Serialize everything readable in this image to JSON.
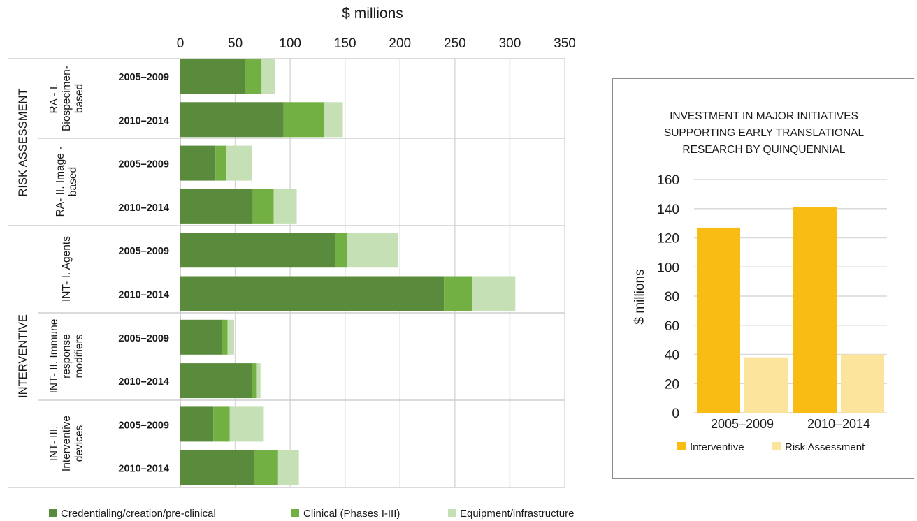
{
  "chart_data": [
    {
      "type": "bar",
      "orientation": "horizontal",
      "stacked": true,
      "xlabel": "$ millions",
      "xlim": [
        0,
        350
      ],
      "xticks": [
        0,
        50,
        100,
        150,
        200,
        250,
        300,
        350
      ],
      "grid": true,
      "legend_position": "bottom",
      "groups": [
        {
          "label": "RISK ASSESSMENT",
          "subgroups": [
            {
              "label": "RA - I. Biospecimen-based",
              "lines": [
                "RA - I.",
                "Biospecimen-",
                "based"
              ],
              "categories": [
                "2005–2009",
                "2010–2014"
              ]
            },
            {
              "label": "RA- II. Image -based",
              "lines": [
                "RA- II. Image -",
                "based"
              ],
              "categories": [
                "2005–2009",
                "2010–2014"
              ]
            }
          ]
        },
        {
          "label": "INTERVENTIVE",
          "subgroups": [
            {
              "label": "INT- I. Agents",
              "lines": [
                "INT- I. Agents"
              ],
              "categories": [
                "2005–2009",
                "2010–2014"
              ]
            },
            {
              "label": "INT- II. Immune response modifiers",
              "lines": [
                "INT- II. Immune",
                "response",
                "modifiers"
              ],
              "categories": [
                "2005–2009",
                "2010–2014"
              ]
            },
            {
              "label": "INT- III. Interventive devices",
              "lines": [
                "INT- III.",
                "Interventive",
                "devices"
              ],
              "categories": [
                "2005–2009",
                "2010–2014"
              ]
            }
          ]
        }
      ],
      "series": [
        {
          "name": "Credentialing/creation/pre-clinical",
          "color": "#5a8a3c",
          "values": [
            59,
            94,
            32,
            66,
            141,
            240,
            38,
            65,
            30,
            67
          ]
        },
        {
          "name": "Clinical (Phases I-III)",
          "color": "#72b043",
          "values": [
            15,
            37,
            10,
            19,
            11,
            26,
            5,
            4,
            15,
            22
          ]
        },
        {
          "name": "Equipment/infrastructure",
          "color": "#c5e0b4",
          "values": [
            12,
            17,
            23,
            21,
            46,
            39,
            6,
            4,
            31,
            19
          ]
        }
      ]
    },
    {
      "type": "bar",
      "title": "INVESTMENT IN MAJOR INITIATIVES SUPPORTING EARLY TRANSLATIONAL RESEARCH BY QUINQUENNIAL",
      "title_lines": [
        "INVESTMENT IN MAJOR INITIATIVES",
        "SUPPORTING EARLY TRANSLATIONAL",
        "RESEARCH BY QUINQUENNIAL"
      ],
      "ylabel": "$ millions",
      "ylim": [
        0,
        160
      ],
      "yticks": [
        0,
        20,
        40,
        60,
        80,
        100,
        120,
        140,
        160
      ],
      "grid": true,
      "legend_position": "bottom",
      "categories": [
        "2005–2009",
        "2010–2014"
      ],
      "series": [
        {
          "name": "Interventive",
          "color": "#f9bc15",
          "values": [
            127,
            141
          ]
        },
        {
          "name": "Risk Assessment",
          "color": "#fde49c",
          "values": [
            38,
            40
          ]
        }
      ]
    }
  ]
}
